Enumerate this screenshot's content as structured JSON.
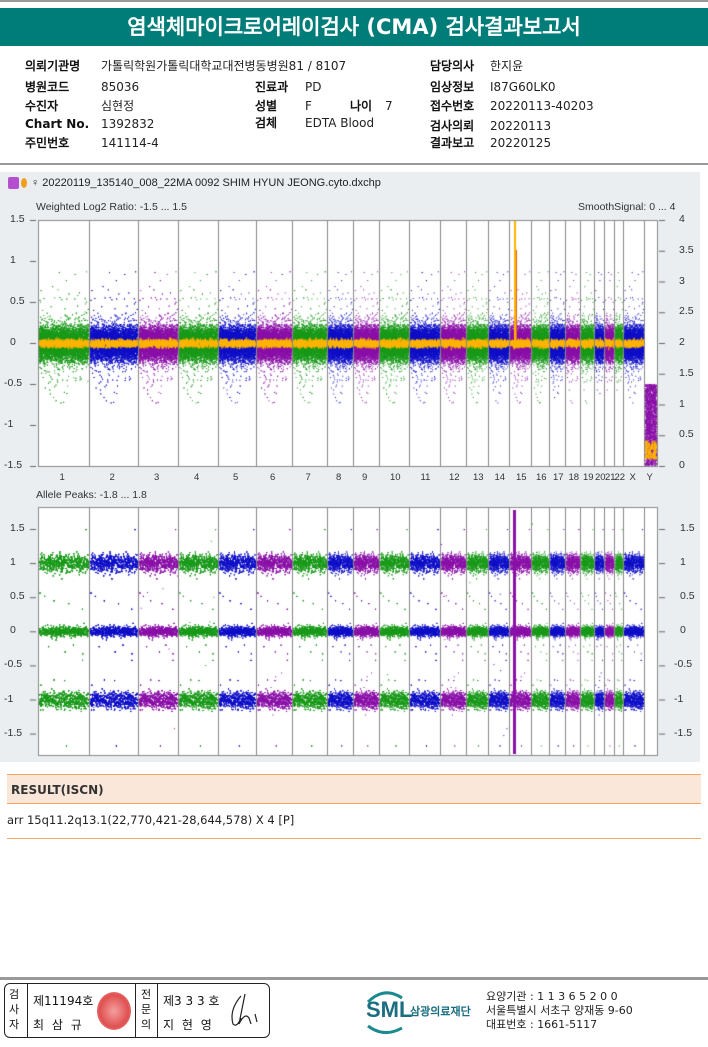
{
  "title": "염색체마이크로어레이검사 (CMA) 검사결과보고서",
  "info": {
    "institution_label": "의뢰기관명",
    "institution": "가톨릭학원가톨릭대학교대전병동병원81 / 8107",
    "doctor_label": "담당의사",
    "doctor": "한지윤",
    "hospital_code_label": "병원코드",
    "hospital_code": "85036",
    "dept_label": "진료과",
    "dept": "PD",
    "clinical_label": "임상정보",
    "clinical": "I87G60LK0",
    "patient_label": "수진자",
    "patient": "심현정",
    "sex_label": "성별",
    "sex": "F",
    "age_label": "나이",
    "age": "7",
    "receipt_label": "접수번호",
    "receipt": "20220113-40203",
    "chart_label": "Chart No.",
    "chart": "1392832",
    "specimen_label": "검체",
    "specimen": "EDTA Blood",
    "request_label": "검사의뢰",
    "request": "20220113",
    "id_label": "주민번호",
    "id": "141114-4",
    "report_label": "결과보고",
    "report": "20220125"
  },
  "plot": {
    "filename": "♀ 20220119_135140_008_22MA 0092 SHIM HYUN JEONG.cyto.dxchp",
    "top_label": "Weighted Log2 Ratio: -1.5 ... 1.5",
    "top_right_label": "SmoothSignal: 0 ... 4",
    "bottom_label": "Allele Peaks: -1.8 ... 1.8",
    "chromosomes": [
      "1",
      "2",
      "3",
      "4",
      "5",
      "6",
      "7",
      "8",
      "9",
      "10",
      "11",
      "12",
      "13",
      "14",
      "15",
      "16",
      "17",
      "18",
      "19",
      "20",
      "21",
      "22",
      "X",
      "Y"
    ],
    "top_left_ticks": [
      "1.5",
      "1",
      "0.5",
      "0",
      "-0.5",
      "-1",
      "-1.5"
    ],
    "top_right_ticks": [
      "4",
      "3.5",
      "3",
      "2.5",
      "2",
      "1.5",
      "1",
      "0.5",
      "0"
    ],
    "bottom_ticks": [
      "1.5",
      "1",
      "0.5",
      "0",
      "-0.5",
      "-1",
      "-1.5"
    ],
    "colors": [
      "#1a9a1a",
      "#1010c8",
      "#8a10a8"
    ],
    "smooth_color": "#ffb400"
  },
  "result": {
    "header": "RESULT(ISCN)",
    "value": "arr 15q11.2q13.1(22,770,421-28,644,578) X 4 [P]"
  },
  "footer": {
    "examiner_label": "검사자",
    "examiner_no": "제11194호",
    "examiner_name": "최 삼 규",
    "specialist_label": "전문의",
    "specialist_no": "제3 3 3 호",
    "specialist_name": "지 현 영",
    "logo": "SML",
    "org": "삼광의료재단",
    "line1": "요양기관 : 1 1 3 6 5 2 0 0",
    "line2": "서울특별시 서초구 양재동 9-60",
    "line3": "대표번호 : 1661-5117"
  }
}
